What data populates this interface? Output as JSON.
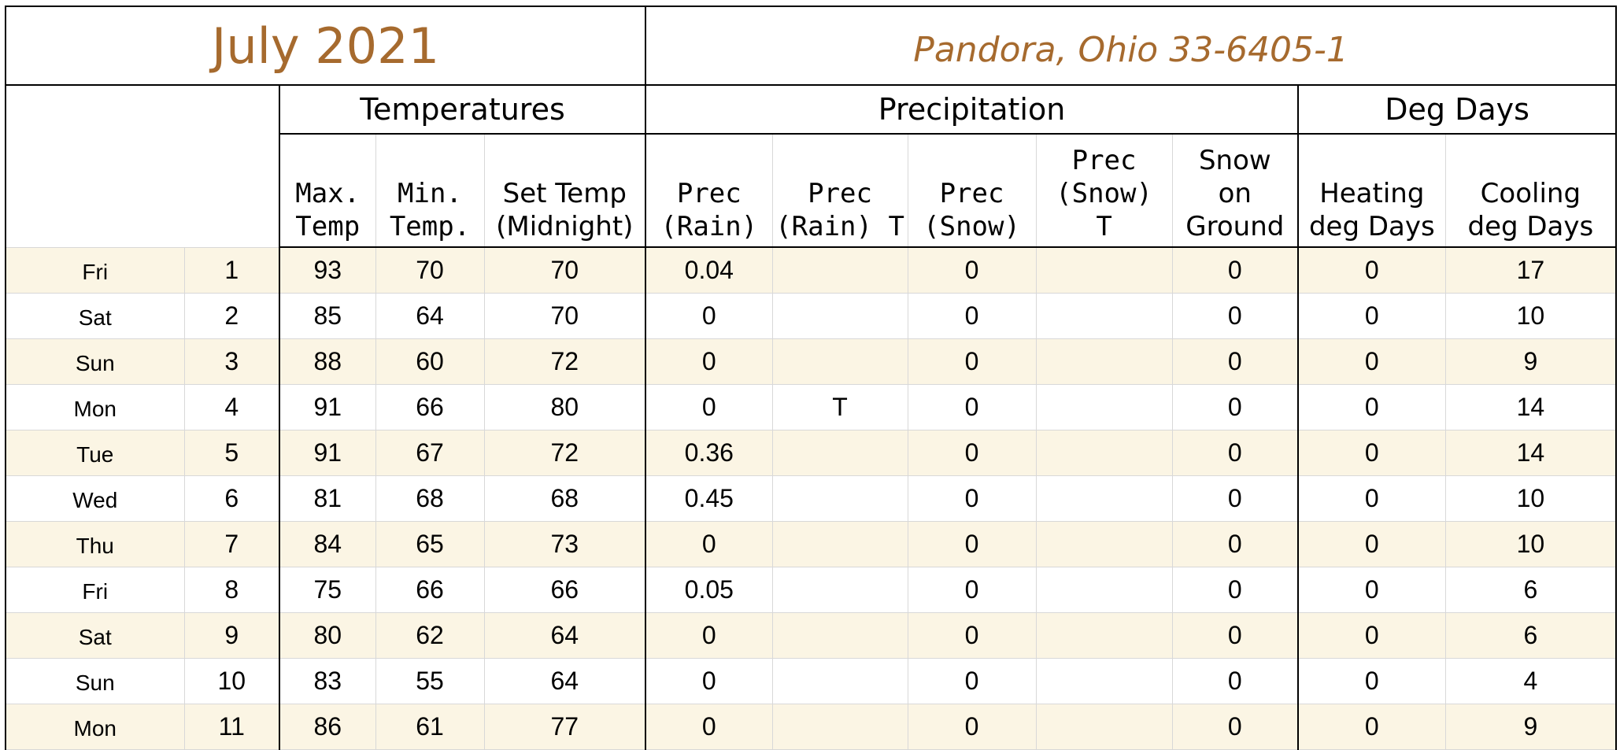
{
  "header": {
    "month_title": "July 2021",
    "station_title": "Pandora, Ohio 33-6405-1"
  },
  "groups": {
    "temperatures": "Temperatures",
    "precipitation": "Precipitation",
    "deg_days": "Deg Days"
  },
  "columns": {
    "max_temp": [
      "Max.",
      "Temp"
    ],
    "min_temp": [
      "Min.",
      "Temp."
    ],
    "set_temp": [
      "Set Temp",
      "(Midnight)"
    ],
    "prec_rain": [
      "Prec",
      "(Rain)"
    ],
    "prec_rain_t": [
      "Prec",
      "(Rain) T"
    ],
    "prec_snow": [
      "Prec",
      "(Snow)"
    ],
    "prec_snow_t": [
      "Prec",
      "(Snow)",
      "T"
    ],
    "snow_on_ground": [
      "Snow",
      "on",
      "Ground"
    ],
    "heating_deg_days": [
      "Heating",
      "deg Days"
    ],
    "cooling_deg_days": [
      "Cooling",
      "deg Days"
    ]
  },
  "rows": [
    {
      "dow": "Fri",
      "day": "1",
      "max": "93",
      "min": "70",
      "set": "70",
      "rain": "0.04",
      "rain_t": "",
      "snow": "0",
      "snow_t": "",
      "ground": "0",
      "heat": "0",
      "cool": "17"
    },
    {
      "dow": "Sat",
      "day": "2",
      "max": "85",
      "min": "64",
      "set": "70",
      "rain": "0",
      "rain_t": "",
      "snow": "0",
      "snow_t": "",
      "ground": "0",
      "heat": "0",
      "cool": "10"
    },
    {
      "dow": "Sun",
      "day": "3",
      "max": "88",
      "min": "60",
      "set": "72",
      "rain": "0",
      "rain_t": "",
      "snow": "0",
      "snow_t": "",
      "ground": "0",
      "heat": "0",
      "cool": "9"
    },
    {
      "dow": "Mon",
      "day": "4",
      "max": "91",
      "min": "66",
      "set": "80",
      "rain": "0",
      "rain_t": "T",
      "snow": "0",
      "snow_t": "",
      "ground": "0",
      "heat": "0",
      "cool": "14"
    },
    {
      "dow": "Tue",
      "day": "5",
      "max": "91",
      "min": "67",
      "set": "72",
      "rain": "0.36",
      "rain_t": "",
      "snow": "0",
      "snow_t": "",
      "ground": "0",
      "heat": "0",
      "cool": "14"
    },
    {
      "dow": "Wed",
      "day": "6",
      "max": "81",
      "min": "68",
      "set": "68",
      "rain": "0.45",
      "rain_t": "",
      "snow": "0",
      "snow_t": "",
      "ground": "0",
      "heat": "0",
      "cool": "10"
    },
    {
      "dow": "Thu",
      "day": "7",
      "max": "84",
      "min": "65",
      "set": "73",
      "rain": "0",
      "rain_t": "",
      "snow": "0",
      "snow_t": "",
      "ground": "0",
      "heat": "0",
      "cool": "10"
    },
    {
      "dow": "Fri",
      "day": "8",
      "max": "75",
      "min": "66",
      "set": "66",
      "rain": "0.05",
      "rain_t": "",
      "snow": "0",
      "snow_t": "",
      "ground": "0",
      "heat": "0",
      "cool": "6"
    },
    {
      "dow": "Sat",
      "day": "9",
      "max": "80",
      "min": "62",
      "set": "64",
      "rain": "0",
      "rain_t": "",
      "snow": "0",
      "snow_t": "",
      "ground": "0",
      "heat": "0",
      "cool": "6"
    },
    {
      "dow": "Sun",
      "day": "10",
      "max": "83",
      "min": "55",
      "set": "64",
      "rain": "0",
      "rain_t": "",
      "snow": "0",
      "snow_t": "",
      "ground": "0",
      "heat": "0",
      "cool": "4"
    },
    {
      "dow": "Mon",
      "day": "11",
      "max": "86",
      "min": "61",
      "set": "77",
      "rain": "0",
      "rain_t": "",
      "snow": "0",
      "snow_t": "",
      "ground": "0",
      "heat": "0",
      "cool": "9"
    }
  ]
}
